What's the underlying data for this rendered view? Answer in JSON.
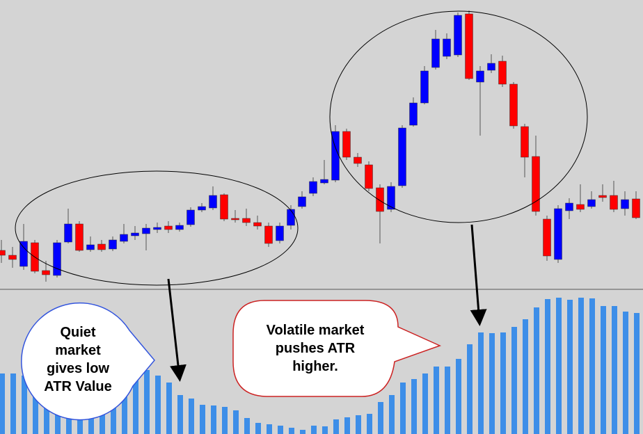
{
  "chart_data": [
    {
      "type": "candlestick",
      "up_color": "#0000ff",
      "down_color": "#ff0000",
      "ylim": [
        0,
        420
      ],
      "open": [
        60,
        53,
        37,
        71,
        31,
        24,
        72,
        98,
        61,
        69,
        62,
        73,
        81,
        84,
        90,
        95,
        90,
        97,
        118,
        121,
        140,
        106,
        106,
        100,
        95,
        74,
        96,
        123,
        142,
        157,
        161,
        231,
        194,
        183,
        150,
        119,
        153,
        240,
        272,
        323,
        339,
        341,
        400,
        302,
        319,
        332,
        299,
        238,
        195,
        105,
        47,
        117,
        126,
        123,
        139,
        139,
        120,
        134
      ],
      "high": [
        75,
        65,
        98,
        75,
        45,
        75,
        120,
        102,
        80,
        75,
        80,
        98,
        95,
        98,
        100,
        102,
        100,
        122,
        128,
        152,
        142,
        118,
        120,
        110,
        100,
        100,
        125,
        145,
        165,
        190,
        240,
        235,
        200,
        188,
        155,
        158,
        240,
        280,
        325,
        377,
        372,
        402,
        405,
        325,
        342,
        340,
        302,
        242,
        225,
        110,
        125,
        135,
        155,
        145,
        155,
        160,
        145,
        145
      ],
      "low": [
        42,
        35,
        32,
        27,
        15,
        21,
        70,
        58,
        58,
        58,
        59,
        70,
        75,
        60,
        85,
        85,
        87,
        94,
        115,
        118,
        102,
        100,
        95,
        90,
        65,
        70,
        90,
        120,
        138,
        155,
        158,
        190,
        180,
        145,
        70,
        115,
        150,
        238,
        270,
        320,
        335,
        338,
        305,
        225,
        315,
        295,
        235,
        165,
        110,
        45,
        42,
        105,
        115,
        120,
        130,
        115,
        110,
        105
      ],
      "close": [
        53,
        47,
        73,
        30,
        25,
        71,
        98,
        60,
        68,
        61,
        75,
        83,
        85,
        92,
        93,
        90,
        96,
        118,
        123,
        139,
        105,
        104,
        100,
        95,
        70,
        95,
        119,
        137,
        159,
        162,
        231,
        194,
        185,
        149,
        116,
        152,
        236,
        272,
        318,
        364,
        364,
        398,
        307,
        318,
        329,
        299,
        239,
        194,
        116,
        52,
        120,
        128,
        119,
        133,
        136,
        119,
        133,
        107
      ]
    },
    {
      "type": "bar",
      "color": "#3d8ee8",
      "ylim": [
        0,
        204
      ],
      "values": [
        87,
        87,
        84,
        81,
        77,
        74,
        71,
        68,
        64,
        62,
        59,
        57,
        84,
        92,
        84,
        74,
        56,
        51,
        42,
        41,
        39,
        34,
        23,
        16,
        14,
        12,
        9,
        6,
        12,
        11,
        21,
        24,
        27,
        29,
        46,
        56,
        74,
        79,
        87,
        97,
        97,
        108,
        129,
        146,
        145,
        146,
        154,
        165,
        182,
        194,
        196,
        193,
        196,
        195,
        184,
        184,
        176,
        174
      ],
      "annotations": [
        "Quiet market gives low ATR Value",
        "Volatile market pushes ATR higher."
      ]
    }
  ]
}
